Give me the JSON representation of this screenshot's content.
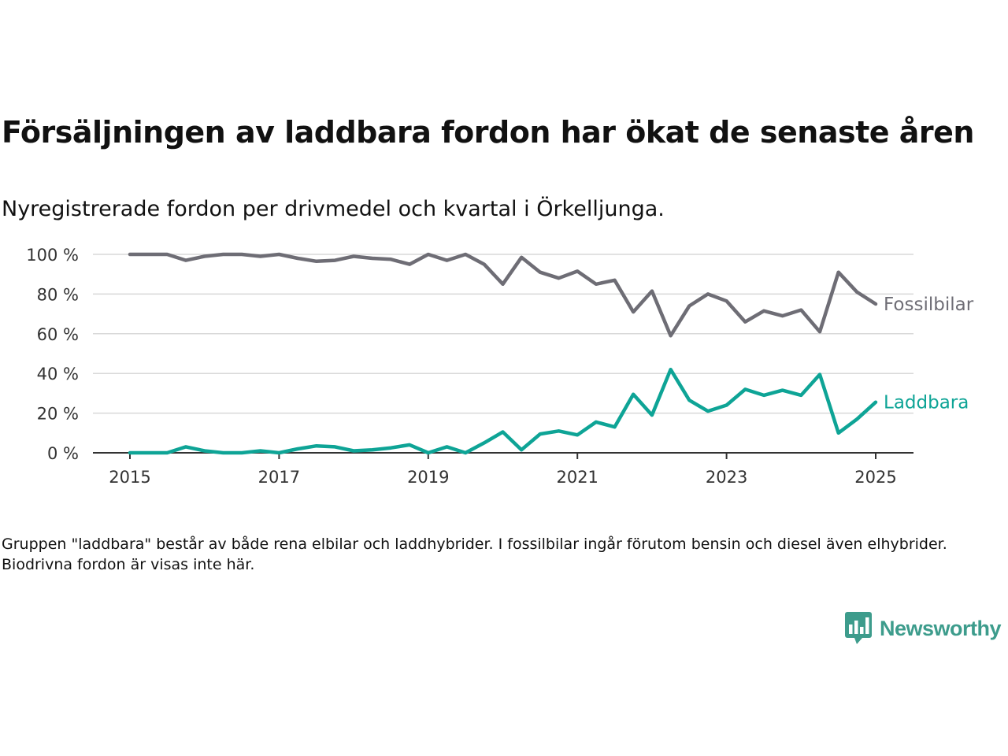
{
  "title": "Försäljningen av laddbara fordon har ökat de senaste åren",
  "subtitle": "Nyregistrerade fordon per drivmedel och kvartal i Örkelljunga.",
  "footnote": "Gruppen \"laddbara\" består av både rena elbilar och laddhybrider. I fossilbilar ingår förutom bensin och diesel även elhybrider. Biodrivna fordon är visas inte här.",
  "brand": {
    "name": "Newsworthy",
    "color": "#3d9c8c",
    "icon": "newsworthy-logo-icon"
  },
  "chart_data": {
    "type": "line",
    "title": "Försäljningen av laddbara fordon har ökat de senaste åren",
    "subtitle": "Nyregistrerade fordon per drivmedel och kvartal i Örkelljunga.",
    "xlabel": "",
    "ylabel": "",
    "x_ticks": [
      "2015",
      "2017",
      "2019",
      "2021",
      "2023",
      "2025"
    ],
    "y_ticks": [
      "0 %",
      "20 %",
      "40 %",
      "60 %",
      "80 %",
      "100 %"
    ],
    "ylim": [
      0,
      100
    ],
    "xlim": [
      "2015-Q1",
      "2025-Q1"
    ],
    "grid": "horizontal",
    "legend": "direct labels at line ends",
    "x": [
      "2015-Q1",
      "2015-Q2",
      "2015-Q3",
      "2015-Q4",
      "2016-Q1",
      "2016-Q2",
      "2016-Q3",
      "2016-Q4",
      "2017-Q1",
      "2017-Q2",
      "2017-Q3",
      "2017-Q4",
      "2018-Q1",
      "2018-Q2",
      "2018-Q3",
      "2018-Q4",
      "2019-Q1",
      "2019-Q2",
      "2019-Q3",
      "2019-Q4",
      "2020-Q1",
      "2020-Q2",
      "2020-Q3",
      "2020-Q4",
      "2021-Q1",
      "2021-Q2",
      "2021-Q3",
      "2021-Q4",
      "2022-Q1",
      "2022-Q2",
      "2022-Q3",
      "2022-Q4",
      "2023-Q1",
      "2023-Q2",
      "2023-Q3",
      "2023-Q4",
      "2024-Q1",
      "2024-Q2",
      "2024-Q3",
      "2024-Q4",
      "2025-Q1"
    ],
    "series": [
      {
        "name": "Fossilbilar",
        "color": "#6e6d75",
        "values": [
          100,
          100,
          100,
          97,
          99,
          100,
          100,
          99,
          100,
          98,
          96.5,
          97,
          99,
          98,
          97.5,
          95,
          100,
          97,
          100,
          95,
          85,
          98.5,
          91,
          88,
          91.5,
          85,
          87,
          71,
          81.5,
          59,
          74,
          80,
          76.5,
          66,
          71.5,
          69,
          72,
          61,
          91,
          81,
          75
        ]
      },
      {
        "name": "Laddbara",
        "color": "#0ea496",
        "values": [
          0,
          0,
          0,
          3,
          1,
          0,
          0,
          1,
          0,
          2,
          3.5,
          3,
          1,
          1.5,
          2.5,
          4,
          0,
          3,
          0,
          5,
          10.5,
          1.5,
          9.5,
          11,
          9,
          15.5,
          13,
          29.5,
          19,
          42,
          26.5,
          21,
          24,
          32,
          29,
          31.5,
          29,
          39.5,
          10,
          17,
          25.5
        ]
      }
    ]
  }
}
